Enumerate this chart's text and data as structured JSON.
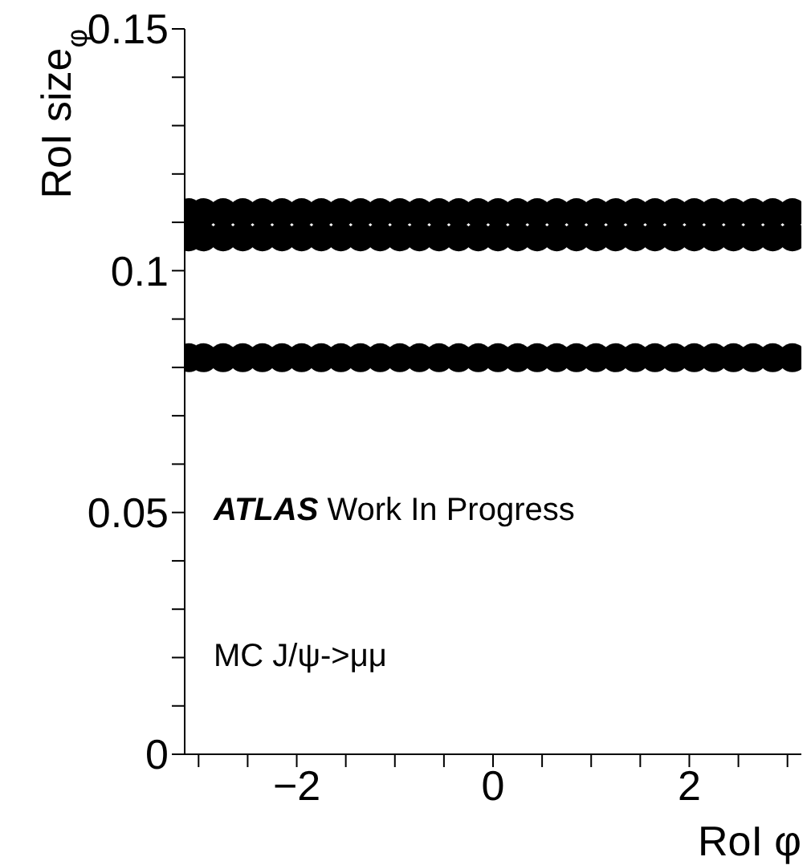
{
  "chart_data": {
    "type": "scatter",
    "xlabel": "RoI φ",
    "ylabel": "RoI size$_{φ}$",
    "annotations": [
      "ATLAS Work In Progress",
      "MC J/ψ->μμ"
    ],
    "x": [
      -3.1,
      -2.95,
      -2.75,
      -2.55,
      -2.35,
      -2.15,
      -1.95,
      -1.75,
      -1.55,
      -1.35,
      -1.15,
      -0.95,
      -0.75,
      -0.55,
      -0.35,
      -0.15,
      0.05,
      0.25,
      0.45,
      0.65,
      0.85,
      1.05,
      1.25,
      1.45,
      1.65,
      1.85,
      2.05,
      2.25,
      2.45,
      2.65,
      2.85,
      3.05
    ],
    "series": [
      {
        "color": "#000000",
        "values": [
          0.082,
          0.082,
          0.082,
          0.082,
          0.082,
          0.082,
          0.082,
          0.082,
          0.082,
          0.082,
          0.082,
          0.082,
          0.082,
          0.082,
          0.082,
          0.082,
          0.082,
          0.082,
          0.082,
          0.082,
          0.082,
          0.082,
          0.082,
          0.082,
          0.082,
          0.082,
          0.082,
          0.082,
          0.082,
          0.082,
          0.082,
          0.082
        ]
      },
      {
        "color": "#000000",
        "values": [
          0.107,
          0.107,
          0.107,
          0.107,
          0.107,
          0.107,
          0.107,
          0.107,
          0.107,
          0.107,
          0.107,
          0.107,
          0.107,
          0.107,
          0.107,
          0.107,
          0.107,
          0.107,
          0.107,
          0.107,
          0.107,
          0.107,
          0.107,
          0.107,
          0.107,
          0.107,
          0.107,
          0.107,
          0.107,
          0.107,
          0.107,
          0.107
        ]
      },
      {
        "color": "#000000",
        "values": [
          0.112,
          0.112,
          0.112,
          0.112,
          0.112,
          0.112,
          0.112,
          0.112,
          0.112,
          0.112,
          0.112,
          0.112,
          0.112,
          0.112,
          0.112,
          0.112,
          0.112,
          0.112,
          0.112,
          0.112,
          0.112,
          0.112,
          0.112,
          0.112,
          0.112,
          0.112,
          0.112,
          0.112,
          0.112,
          0.112,
          0.112,
          0.112
        ]
      }
    ],
    "xlim": [
      -3.1416,
      3.1416
    ],
    "xticks": [
      {
        "value": -3,
        "label": null
      },
      {
        "value": -2.5,
        "label": null
      },
      -2,
      {
        "value": -1.5,
        "label": null
      },
      {
        "value": -1,
        "label": null
      },
      {
        "value": -0.5,
        "label": null
      },
      0,
      {
        "value": 0.5,
        "label": null
      },
      {
        "value": 1,
        "label": null
      },
      {
        "value": 1.5,
        "label": null
      },
      2,
      {
        "value": 2.5,
        "label": null
      },
      {
        "value": 3,
        "label": null
      }
    ],
    "ylim": [
      0,
      0.15
    ],
    "yticks": [
      0,
      {
        "value": 0.01,
        "label": null
      },
      {
        "value": 0.02,
        "label": null
      },
      {
        "value": 0.03,
        "label": null
      },
      {
        "value": 0.04,
        "label": null
      },
      0.05,
      {
        "value": 0.06,
        "label": null
      },
      {
        "value": 0.07,
        "label": null
      },
      {
        "value": 0.08,
        "label": null
      },
      {
        "value": 0.09,
        "label": null
      },
      0.1,
      {
        "value": 0.11,
        "label": null
      },
      {
        "value": 0.12,
        "label": null
      },
      {
        "value": 0.13,
        "label": null
      },
      {
        "value": 0.14,
        "label": null
      },
      0.15
    ],
    "marker": "circle",
    "grid": false,
    "legend": false
  }
}
